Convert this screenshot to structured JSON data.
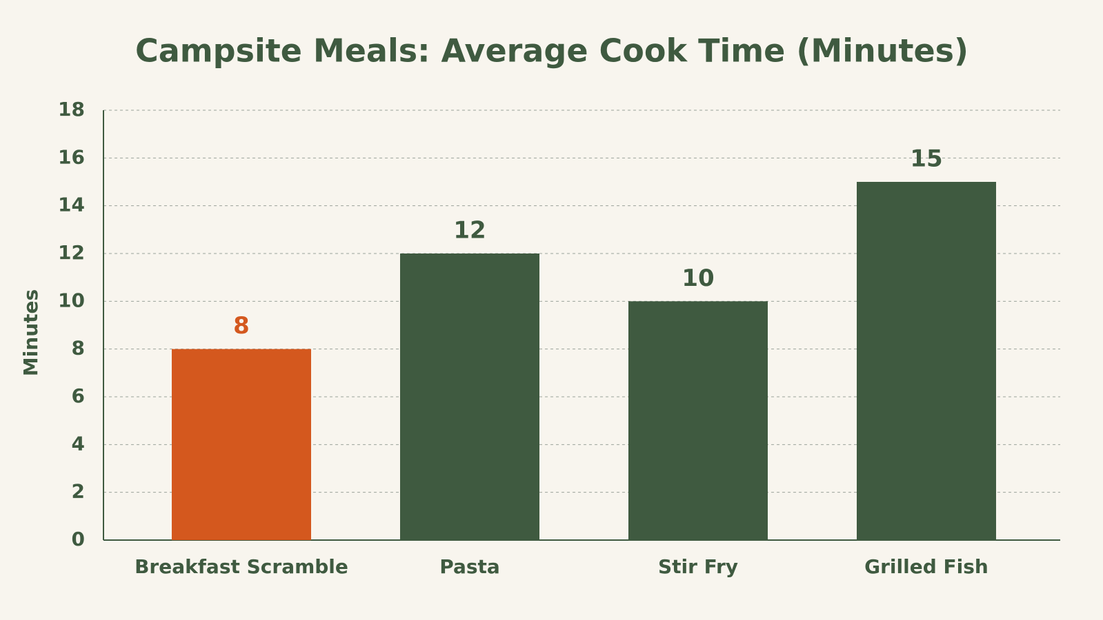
{
  "chart_data": {
    "type": "bar",
    "title": "Campsite Meals: Average Cook Time (Minutes)",
    "y_label": "Minutes",
    "categories": [
      "Breakfast Scramble",
      "Pasta",
      "Stir Fry",
      "Grilled Fish"
    ],
    "values": [
      8,
      12,
      10,
      15
    ],
    "colors": [
      "#d4581e",
      "#3f5a40",
      "#3f5a40",
      "#3f5a40"
    ],
    "ylim": [
      0,
      18
    ],
    "yticks": [
      0,
      2,
      4,
      6,
      8,
      10,
      12,
      14,
      16,
      18
    ],
    "grid": true
  }
}
